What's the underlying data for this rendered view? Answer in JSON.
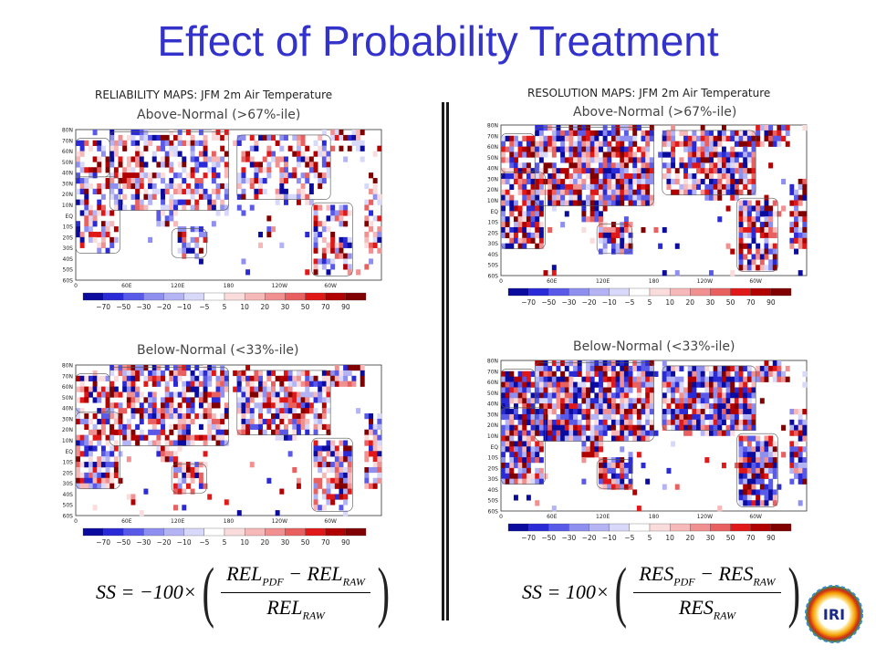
{
  "slide": {
    "title": "Effect of Probability Treatment"
  },
  "left": {
    "heading": "RELIABILITY MAPS: JFM 2m Air Temperature",
    "top": {
      "subtitle": "Above-Normal (>67%-ile)"
    },
    "bottom": {
      "subtitle": "Below-Normal (<33%-ile)"
    },
    "formula": {
      "lhs": "SS = −100×",
      "num_a": "REL",
      "num_a_sub": "PDF",
      "num_minus": " − ",
      "num_b": "REL",
      "num_b_sub": "RAW",
      "den": "REL",
      "den_sub": "RAW"
    }
  },
  "right": {
    "heading": "RESOLUTION MAPS: JFM 2m Air Temperature",
    "top": {
      "subtitle": "Above-Normal (>67%-ile)"
    },
    "bottom": {
      "subtitle": "Below-Normal (<33%-ile)"
    },
    "formula": {
      "lhs": "SS = 100×",
      "num_a": "RES",
      "num_a_sub": "PDF",
      "num_minus": " − ",
      "num_b": "RES",
      "num_b_sub": "RAW",
      "den": "RES",
      "den_sub": "RAW"
    }
  },
  "map": {
    "lat_labels": [
      "80N",
      "70N",
      "60N",
      "50N",
      "40N",
      "30N",
      "20N",
      "10N",
      "EQ",
      "10S",
      "20S",
      "30S",
      "40S",
      "50S",
      "60S"
    ],
    "lon_labels": [
      "0",
      "60E",
      "120E",
      "180",
      "120W",
      "60W"
    ],
    "lon_values": [
      0,
      60,
      120,
      180,
      240,
      300
    ]
  },
  "colorbar": {
    "colors": [
      "#0b0b9e",
      "#2a2ad6",
      "#5a5ae8",
      "#8f8ff0",
      "#b4b4f4",
      "#d8d8fa",
      "#ffffff",
      "#fadcdc",
      "#f6b8b8",
      "#f09090",
      "#e86060",
      "#e01818",
      "#b00000",
      "#800000"
    ],
    "labels": [
      "−70",
      "−50",
      "−30",
      "−20",
      "−10",
      "−5",
      "5",
      "10",
      "20",
      "30",
      "50",
      "70",
      "90"
    ]
  },
  "logo": {
    "text": "IRI"
  }
}
